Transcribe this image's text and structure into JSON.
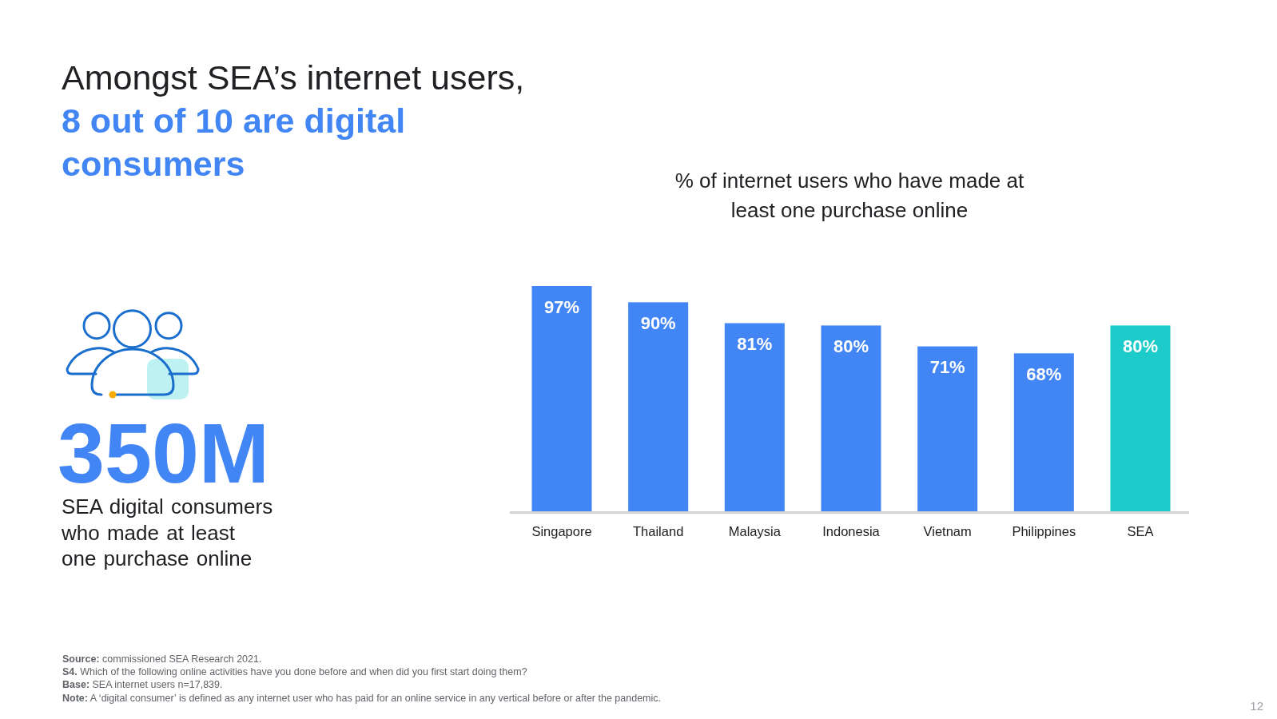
{
  "chart_data": [
    {
      "type": "other",
      "title": "Amongst SEA’s internet users,",
      "subtitle": "8 out of 10 are digital consumers",
      "annotations": [
        "350M",
        "SEA digital consumers who made at least one purchase online"
      ]
    },
    {
      "type": "bar",
      "title": "% of internet users who have made at least one purchase online",
      "categories": [
        "Singapore",
        "Thailand",
        "Malaysia",
        "Indonesia",
        "Vietnam",
        "Philippines",
        "SEA"
      ],
      "values": [
        97,
        90,
        81,
        80,
        71,
        68,
        80
      ],
      "colors": [
        "#4285f4",
        "#4285f4",
        "#4285f4",
        "#4285f4",
        "#4285f4",
        "#4285f4",
        "#1ccbca"
      ],
      "value_labels": [
        "97%",
        "90%",
        "81%",
        "80%",
        "71%",
        "68%",
        "80%"
      ],
      "annotations": [
        "Source: commissioned SEA Research 2021.",
        "S4. Which of the following online activities have you done before and when did you first start doing them?",
        "Base: SEA internet users n=17,839.",
        "Note: A ‘digital consumer’ is defined as any internet user who has paid for an online service in any vertical before or after the pandemic.",
        "12"
      ]
    }
  ]
}
